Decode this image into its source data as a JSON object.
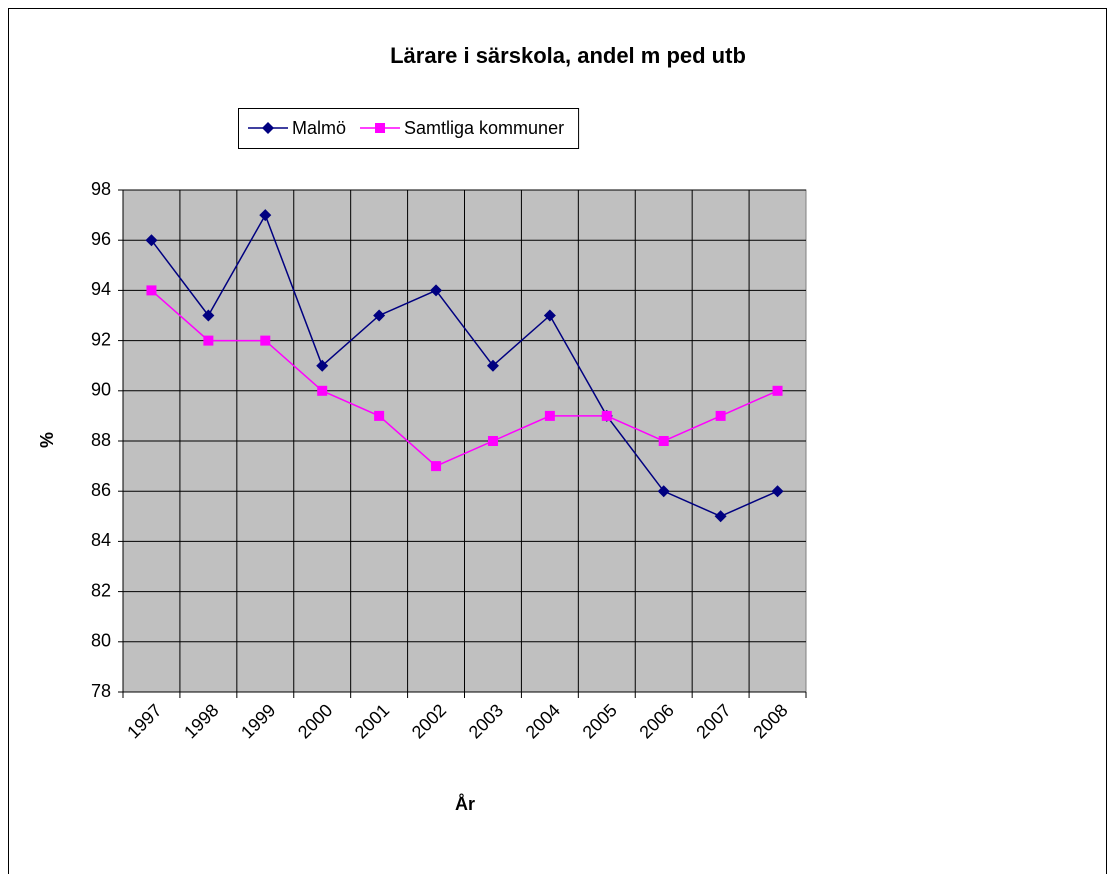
{
  "chart_data": {
    "type": "line",
    "title": "Lärare i särskola, andel m ped utb",
    "x_label": "År",
    "y_label": "%",
    "categories": [
      "1997",
      "1998",
      "1999",
      "2000",
      "2001",
      "2002",
      "2003",
      "2004",
      "2005",
      "2006",
      "2007",
      "2008"
    ],
    "series": [
      {
        "name": "Malmö",
        "color": "#000080",
        "marker": "diamond",
        "values": [
          96,
          93,
          97,
          91,
          93,
          94,
          91,
          93,
          89,
          86,
          85,
          86
        ]
      },
      {
        "name": "Samtliga kommuner",
        "color": "#ff00ff",
        "marker": "square",
        "values": [
          94,
          92,
          92,
          90,
          89,
          87,
          88,
          89,
          89,
          88,
          89,
          90
        ]
      }
    ],
    "ylim": [
      78,
      98
    ],
    "yticks": [
      78,
      80,
      82,
      84,
      86,
      88,
      90,
      92,
      94,
      96,
      98
    ],
    "grid": true,
    "legend": "top",
    "plot_background": "#c0c0c0"
  }
}
